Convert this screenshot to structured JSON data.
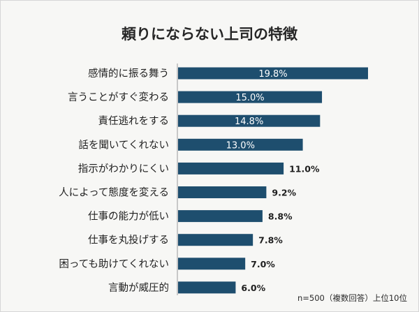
{
  "chart_data": {
    "type": "bar",
    "orientation": "horizontal",
    "title": "頼りにならない上司の特徴",
    "categories": [
      "感情的に振る舞う",
      "言うことがすぐ変わる",
      "責任逃れをする",
      "話を聞いてくれない",
      "指示がわかりにくい",
      "人によって態度を変える",
      "仕事の能力が低い",
      "仕事を丸投げする",
      "困っても助けてくれない",
      "言動が威圧的"
    ],
    "values": [
      19.8,
      15.0,
      14.8,
      13.0,
      11.0,
      9.2,
      8.8,
      7.8,
      7.0,
      6.0
    ],
    "value_labels": [
      "19.8%",
      "15.0%",
      "14.8%",
      "13.0%",
      "11.0%",
      "9.2%",
      "8.8%",
      "7.8%",
      "7.0%",
      "6.0%"
    ],
    "xlim": [
      0,
      20
    ],
    "grid": false,
    "legend": "none",
    "note": "n=500（複数回答）上位10位",
    "colors": {
      "bar": "#1e4e6e",
      "axis": "#9a9a9a",
      "background": "#f7f7f5"
    }
  }
}
